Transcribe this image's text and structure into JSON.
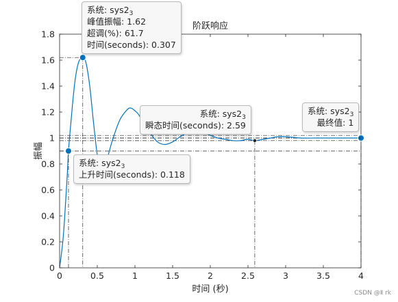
{
  "chart_data": {
    "type": "line",
    "title": "阶跃响应",
    "xlabel": "时间 (秒)",
    "ylabel": "振幅",
    "xlim": [
      0,
      4
    ],
    "ylim": [
      0,
      1.8
    ],
    "x_ticks": [
      "0",
      "0.5",
      "1",
      "1.5",
      "2",
      "2.5",
      "3",
      "3.5",
      "4"
    ],
    "y_ticks": [
      "0",
      "0.2",
      "0.4",
      "0.6",
      "0.8",
      "1",
      "1.2",
      "1.4",
      "1.6",
      "1.8"
    ],
    "grid": false,
    "series": [
      {
        "name": "sys2₃",
        "color": "#0072bd",
        "x": [
          0,
          0.05,
          0.1,
          0.118,
          0.15,
          0.2,
          0.25,
          0.307,
          0.35,
          0.4,
          0.45,
          0.5,
          0.55,
          0.6,
          0.7,
          0.8,
          0.9,
          0.95,
          1.0,
          1.05,
          1.1,
          1.2,
          1.3,
          1.4,
          1.5,
          1.6,
          1.7,
          1.8,
          1.9,
          2.0,
          2.1,
          2.2,
          2.3,
          2.4,
          2.5,
          2.59,
          2.7,
          2.8,
          2.9,
          3.0,
          3.2,
          3.4,
          3.6,
          3.8,
          4.0
        ],
        "y": [
          0,
          0.25,
          0.7,
          0.9,
          1.12,
          1.42,
          1.58,
          1.62,
          1.58,
          1.4,
          1.12,
          0.87,
          0.75,
          0.78,
          0.98,
          1.14,
          1.22,
          1.23,
          1.21,
          1.18,
          1.13,
          1.04,
          0.97,
          0.95,
          0.97,
          1.01,
          1.04,
          1.05,
          1.04,
          1.02,
          1.0,
          0.99,
          0.98,
          0.98,
          0.99,
          0.98,
          0.99,
          1.0,
          1.01,
          1.01,
          1.0,
          1.0,
          1.0,
          1.0,
          1.0
        ]
      }
    ],
    "reference_lines": [
      0.9,
      0.98,
      1.0,
      1.02
    ],
    "markers": [
      {
        "label": "peak",
        "x": 0.307,
        "y": 1.62
      },
      {
        "label": "rise",
        "x": 0.118,
        "y": 0.9
      },
      {
        "label": "settling",
        "x": 2.59,
        "y": 0.98
      },
      {
        "label": "final",
        "x": 4.0,
        "y": 1.0
      }
    ]
  },
  "datatips": {
    "peak": {
      "system_label": "系统: sys2",
      "system_sub": "3",
      "peak_amplitude": "峰值振幅: 1.62",
      "overshoot": "超调(%): 61.7",
      "time": "时间(seconds): 0.307"
    },
    "rise": {
      "system_label": "系统: sys2",
      "system_sub": "3",
      "rise_time": "上升时间(seconds): 0.118"
    },
    "settling": {
      "system_label": "系统: sys2",
      "system_sub": "3",
      "settling_time": "瞬态时间(seconds): 2.59"
    },
    "final": {
      "system_label": "系统: sys2",
      "system_sub": "3",
      "final_value": "最终值: 1"
    }
  },
  "watermark": "CSDN @Ⅱ rk"
}
